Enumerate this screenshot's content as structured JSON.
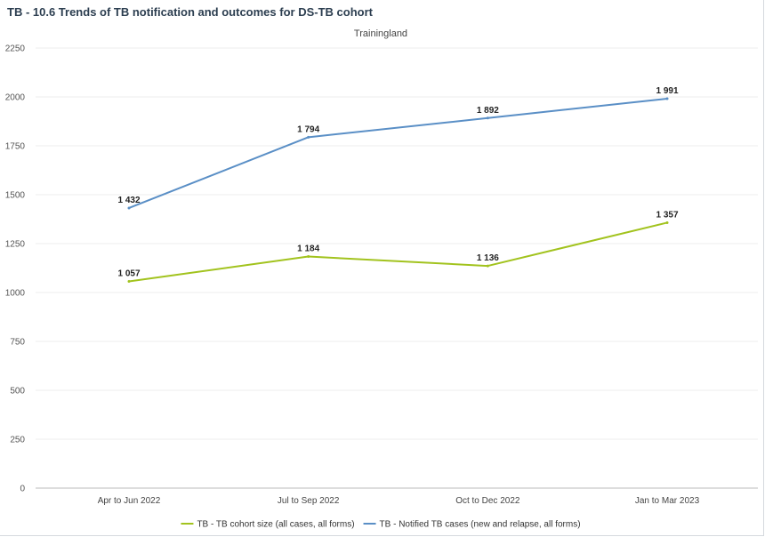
{
  "title": "TB - 10.6 Trends of TB notification and outcomes for DS-TB cohort",
  "chart_data": {
    "type": "line",
    "subtitle": "Trainingland",
    "categories": [
      "Apr to Jun 2022",
      "Jul to Sep 2022",
      "Oct to Dec 2022",
      "Jan to Mar 2023"
    ],
    "series": [
      {
        "name": "TB - TB cohort size (all cases, all forms)",
        "values": [
          1057,
          1184,
          1136,
          1357
        ],
        "labels": [
          "1 057",
          "1 184",
          "1 136",
          "1 357"
        ],
        "color": "#a2c31e"
      },
      {
        "name": "TB - Notified TB cases (new and relapse, all forms)",
        "values": [
          1432,
          1794,
          1892,
          1991
        ],
        "labels": [
          "1 432",
          "1 794",
          "1 892",
          "1 991"
        ],
        "color": "#5a8fc6"
      }
    ],
    "yticks": [
      "0",
      "250",
      "500",
      "750",
      "1000",
      "1250",
      "1500",
      "1750",
      "2000",
      "2250"
    ],
    "ylim": [
      0,
      2250
    ],
    "grid": true,
    "legend": "bottom-center"
  }
}
